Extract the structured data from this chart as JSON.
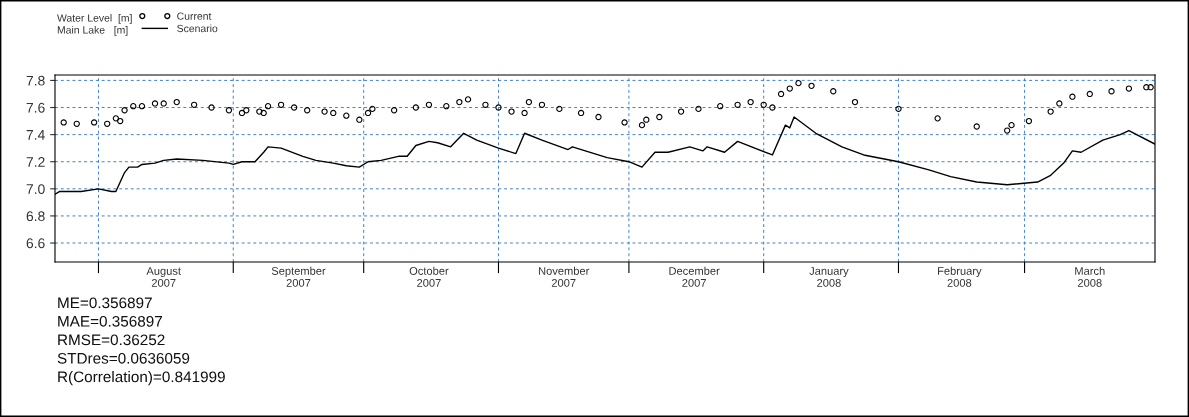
{
  "chart_data": {
    "type": "line",
    "ylabel": "Water Level  [m]\nMain Lake   [m]",
    "series": [
      {
        "name": "Current",
        "type": "scatter",
        "marker": "circle",
        "color": "#000000",
        "x": [
          "2007-07-24",
          "2007-07-27",
          "2007-07-31",
          "2007-08-03",
          "2007-08-05",
          "2007-08-06",
          "2007-08-07",
          "2007-08-09",
          "2007-08-11",
          "2007-08-14",
          "2007-08-16",
          "2007-08-19",
          "2007-08-23",
          "2007-08-27",
          "2007-08-31",
          "2007-09-03",
          "2007-09-04",
          "2007-09-07",
          "2007-09-08",
          "2007-09-09",
          "2007-09-12",
          "2007-09-15",
          "2007-09-18",
          "2007-09-22",
          "2007-09-24",
          "2007-09-27",
          "2007-09-30",
          "2007-10-02",
          "2007-10-03",
          "2007-10-08",
          "2007-10-13",
          "2007-10-16",
          "2007-10-20",
          "2007-10-23",
          "2007-10-25",
          "2007-10-29",
          "2007-11-01",
          "2007-11-04",
          "2007-11-07",
          "2007-11-08",
          "2007-11-11",
          "2007-11-15",
          "2007-11-20",
          "2007-11-24",
          "2007-11-30",
          "2007-12-04",
          "2007-12-05",
          "2007-12-08",
          "2007-12-13",
          "2007-12-17",
          "2007-12-22",
          "2007-12-26",
          "2007-12-29",
          "2008-01-01",
          "2008-01-03",
          "2008-01-05",
          "2008-01-07",
          "2008-01-09",
          "2008-01-12",
          "2008-01-17",
          "2008-01-22",
          "2008-02-01",
          "2008-02-10",
          "2008-02-19",
          "2008-02-26",
          "2008-02-27",
          "2008-03-02",
          "2008-03-07",
          "2008-03-09",
          "2008-03-12",
          "2008-03-16",
          "2008-03-21",
          "2008-03-25",
          "2008-03-29",
          "2008-03-30"
        ],
        "values": [
          7.49,
          7.48,
          7.49,
          7.48,
          7.52,
          7.5,
          7.58,
          7.61,
          7.61,
          7.63,
          7.63,
          7.64,
          7.62,
          7.6,
          7.58,
          7.56,
          7.58,
          7.57,
          7.56,
          7.61,
          7.62,
          7.6,
          7.58,
          7.57,
          7.56,
          7.54,
          7.51,
          7.56,
          7.59,
          7.58,
          7.6,
          7.62,
          7.61,
          7.64,
          7.66,
          7.62,
          7.6,
          7.57,
          7.56,
          7.64,
          7.62,
          7.59,
          7.56,
          7.53,
          7.49,
          7.47,
          7.51,
          7.53,
          7.57,
          7.59,
          7.61,
          7.62,
          7.64,
          7.62,
          7.6,
          7.7,
          7.74,
          7.78,
          7.76,
          7.72,
          7.64,
          7.59,
          7.52,
          7.46,
          7.43,
          7.47,
          7.5,
          7.57,
          7.63,
          7.68,
          7.7,
          7.72,
          7.74,
          7.75,
          7.75
        ]
      },
      {
        "name": "Scenario",
        "line_style": "solid",
        "color": "#000000",
        "x": [
          "2007-07-22",
          "2007-07-23",
          "2007-07-28",
          "2007-08-01",
          "2007-08-04",
          "2007-08-05",
          "2007-08-06",
          "2007-08-07",
          "2007-08-08",
          "2007-08-10",
          "2007-08-11",
          "2007-08-14",
          "2007-08-16",
          "2007-08-19",
          "2007-08-25",
          "2007-08-31",
          "2007-09-01",
          "2007-09-03",
          "2007-09-06",
          "2007-09-08",
          "2007-09-09",
          "2007-09-12",
          "2007-09-17",
          "2007-09-20",
          "2007-09-24",
          "2007-09-27",
          "2007-09-30",
          "2007-10-02",
          "2007-10-05",
          "2007-10-09",
          "2007-10-11",
          "2007-10-13",
          "2007-10-16",
          "2007-10-18",
          "2007-10-21",
          "2007-10-24",
          "2007-10-27",
          "2007-11-01",
          "2007-11-05",
          "2007-11-07",
          "2007-11-11",
          "2007-11-17",
          "2007-11-18",
          "2007-11-26",
          "2007-12-01",
          "2007-12-04",
          "2007-12-07",
          "2007-12-10",
          "2007-12-15",
          "2007-12-18",
          "2007-12-19",
          "2007-12-23",
          "2007-12-26",
          "2008-01-03",
          "2008-01-06",
          "2008-01-07",
          "2008-01-08",
          "2008-01-13",
          "2008-01-19",
          "2008-01-24",
          "2008-02-01",
          "2008-02-08",
          "2008-02-13",
          "2008-02-19",
          "2008-02-26",
          "2008-03-04",
          "2008-03-07",
          "2008-03-10",
          "2008-03-12",
          "2008-03-14",
          "2008-03-19",
          "2008-03-23",
          "2008-03-25",
          "2008-03-31"
        ],
        "values": [
          6.96,
          6.98,
          6.98,
          7.0,
          6.98,
          6.98,
          7.05,
          7.12,
          7.16,
          7.16,
          7.18,
          7.19,
          7.21,
          7.22,
          7.21,
          7.19,
          7.18,
          7.2,
          7.2,
          7.27,
          7.31,
          7.3,
          7.24,
          7.21,
          7.19,
          7.17,
          7.16,
          7.2,
          7.21,
          7.24,
          7.24,
          7.32,
          7.35,
          7.34,
          7.31,
          7.41,
          7.36,
          7.3,
          7.26,
          7.41,
          7.36,
          7.29,
          7.31,
          7.23,
          7.2,
          7.16,
          7.27,
          7.27,
          7.31,
          7.28,
          7.31,
          7.27,
          7.35,
          7.25,
          7.47,
          7.45,
          7.53,
          7.41,
          7.31,
          7.25,
          7.2,
          7.14,
          7.09,
          7.05,
          7.03,
          7.05,
          7.1,
          7.19,
          7.28,
          7.27,
          7.36,
          7.4,
          7.43,
          7.33
        ]
      }
    ],
    "xlim": [
      "2007-07-22",
      "2008-03-31"
    ],
    "xticks": [
      {
        "value": "2007-08-01",
        "label": null
      },
      {
        "value": "2007-08-16",
        "label": "August\n2007"
      },
      {
        "value": "2007-09-01",
        "label": null
      },
      {
        "value": "2007-09-16",
        "label": "September\n2007"
      },
      {
        "value": "2007-10-01",
        "label": null
      },
      {
        "value": "2007-10-16",
        "label": "October\n2007"
      },
      {
        "value": "2007-11-01",
        "label": null
      },
      {
        "value": "2007-11-16",
        "label": "November\n2007"
      },
      {
        "value": "2007-12-01",
        "label": null
      },
      {
        "value": "2007-12-16",
        "label": "December\n2007"
      },
      {
        "value": "2008-01-01",
        "label": null
      },
      {
        "value": "2008-01-16",
        "label": "January\n2008"
      },
      {
        "value": "2008-02-01",
        "label": null
      },
      {
        "value": "2008-02-15",
        "label": "February\n2008"
      },
      {
        "value": "2008-03-01",
        "label": null
      },
      {
        "value": "2008-03-16",
        "label": "March\n2008"
      }
    ],
    "ylim": [
      6.46,
      7.84
    ],
    "yticks": [
      {
        "value": 6.6,
        "label": "6.6"
      },
      {
        "value": 6.8,
        "label": "6.8"
      },
      {
        "value": 7.0,
        "label": "7.0"
      },
      {
        "value": 7.2,
        "label": "7.2"
      },
      {
        "value": 7.4,
        "label": "7.4"
      },
      {
        "value": 7.6,
        "label": "7.6"
      },
      {
        "value": 7.8,
        "label": "7.8"
      }
    ],
    "grid": true,
    "legend": "top left",
    "annotations": [
      "ME=0.356897",
      "MAE=0.356897",
      "RMSE=0.36252",
      "STDres=0.0636059",
      "R(Correlation)=0.841999"
    ]
  }
}
